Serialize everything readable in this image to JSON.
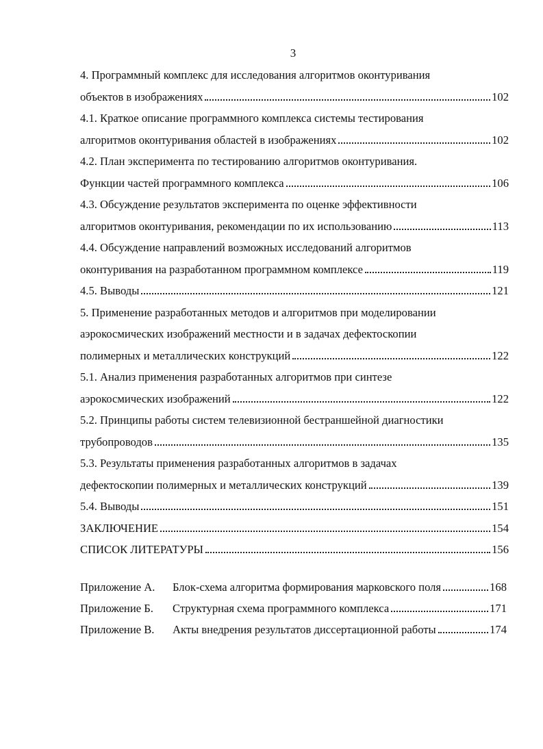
{
  "page_number": "3",
  "entries": [
    {
      "lines": [
        "4. Программный комплекс для исследования алгоритмов оконтуривания",
        "объектов в изображениях"
      ],
      "page": "102"
    },
    {
      "lines": [
        "4.1. Краткое описание программного комплекса системы тестирования",
        "алгоритмов оконтуривания областей в изображениях"
      ],
      "page": "102"
    },
    {
      "lines": [
        "4.2. План эксперимента по тестированию алгоритмов оконтуривания.",
        "Функции частей программного комплекса"
      ],
      "page": "106"
    },
    {
      "lines": [
        "4.3. Обсуждение результатов эксперимента по оценке эффективности",
        "алгоритмов оконтуривания, рекомендации по их использованию"
      ],
      "page": "113"
    },
    {
      "lines": [
        "4.4. Обсуждение направлений возможных исследований алгоритмов",
        "оконтуривания на разработанном программном комплексе"
      ],
      "page": "119"
    },
    {
      "lines": [
        "4.5. Выводы"
      ],
      "page": "121"
    },
    {
      "lines": [
        "5. Применение разработанных методов и алгоритмов при моделировании",
        "аэрокосмических изображений местности и в задачах дефектоскопии",
        "полимерных и металлических конструкций"
      ],
      "page": "122"
    },
    {
      "lines": [
        "5.1. Анализ применения разработанных алгоритмов при синтезе",
        "аэрокосмических изображений"
      ],
      "page": "122"
    },
    {
      "lines": [
        "5.2. Принципы работы систем телевизионной бестраншейной диагностики",
        "трубопроводов"
      ],
      "page": "135"
    },
    {
      "lines": [
        "5.3. Результаты применения разработанных алгоритмов в задачах",
        "дефектоскопии полимерных и металлических конструкций"
      ],
      "page": "139"
    },
    {
      "lines": [
        "5.4. Выводы"
      ],
      "page": "151"
    },
    {
      "lines": [
        "ЗАКЛЮЧЕНИЕ"
      ],
      "page": "154"
    },
    {
      "lines": [
        "СПИСОК ЛИТЕРАТУРЫ"
      ],
      "page": "156"
    }
  ],
  "appendices": [
    {
      "label": "Приложение А.",
      "title": "Блок-схема алгоритма формирования марковского поля",
      "page": "168"
    },
    {
      "label": "Приложение Б.",
      "title": "Структурная схема программного комплекса",
      "page": "171"
    },
    {
      "label": "Приложение В.",
      "title": "Акты внедрения результатов диссертационной работы",
      "page": "174"
    }
  ]
}
